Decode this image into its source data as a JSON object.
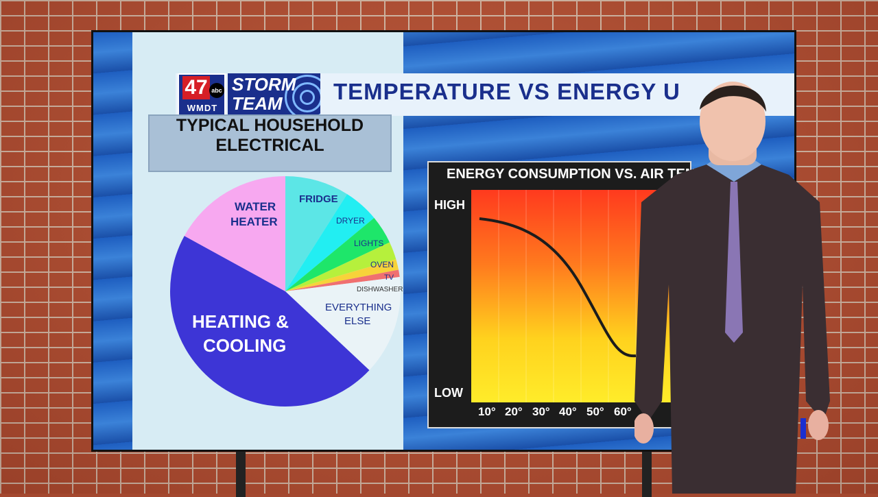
{
  "logo": {
    "channel": "47",
    "network": "abc",
    "call_sign": "WMDT"
  },
  "storm_team": {
    "line1": "STORM",
    "line2": "TEAM"
  },
  "title": "TEMPERATURE VS ENERGY U",
  "subtitle": {
    "line1": "TYPICAL HOUSEHOLD",
    "line2": "ELECTRICAL"
  },
  "pie": {
    "slices": [
      {
        "label": "FRIDGE",
        "percent": 9,
        "color": "#5ce6e6"
      },
      {
        "label": "DRYER",
        "percent": 5,
        "color": "#22eef2"
      },
      {
        "label": "LIGHTS",
        "percent": 4,
        "color": "#1ee66a"
      },
      {
        "label": "OVEN",
        "percent": 2.5,
        "color": "#b6f03c"
      },
      {
        "label": "TV",
        "percent": 1.5,
        "color": "#f7d33a"
      },
      {
        "label": "DISHWASHER",
        "percent": 1,
        "color": "#f07070"
      },
      {
        "label": "EVERYTHING ELSE",
        "percent": 14,
        "color": "#eaf3f7"
      },
      {
        "label": "HEATING & COOLING",
        "percent": 46,
        "color": "#3d35d6"
      },
      {
        "label": "WATER HEATER",
        "percent": 17,
        "color": "#f7a8f0"
      }
    ],
    "labels": {
      "fridge": "FRIDGE",
      "dryer": "DRYER",
      "lights": "LIGHTS",
      "oven": "OVEN",
      "tv": "TV",
      "dishwasher": "DISHWASHER",
      "everything1": "EVERYTHING",
      "everything2": "ELSE",
      "heating1": "HEATING &",
      "heating2": "COOLING",
      "water1": "WATER",
      "water2": "HEATER"
    }
  },
  "curve_chart": {
    "title": "ENERGY CONSUMPTION VS. AIR TEMPE",
    "y_high": "HIGH",
    "y_low": "LOW",
    "x_ticks": [
      "10°",
      "20°",
      "30°",
      "40°",
      "50°",
      "60°"
    ]
  },
  "colors": {
    "brand_blue": "#1a2f8c",
    "logo_red": "#d61f26"
  }
}
